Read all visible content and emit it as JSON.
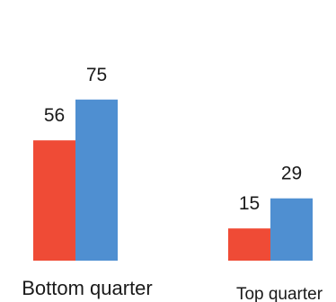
{
  "chart_data": {
    "type": "bar",
    "categories": [
      "Bottom quarter",
      "Top quarter"
    ],
    "series": [
      {
        "values": [
          56,
          75
        ],
        "color": "#ef4b36"
      },
      {
        "values": [
          15,
          29
        ],
        "color": "#4f8fd1"
      }
    ],
    "grouped_values": [
      [
        56,
        75
      ],
      [
        15,
        29
      ]
    ],
    "bar_colors": [
      "#ef4b36",
      "#4f8fd1"
    ],
    "ylim": [
      0,
      100
    ],
    "grid": false,
    "legend": "none",
    "title": "",
    "xlabel": "",
    "ylabel": ""
  }
}
